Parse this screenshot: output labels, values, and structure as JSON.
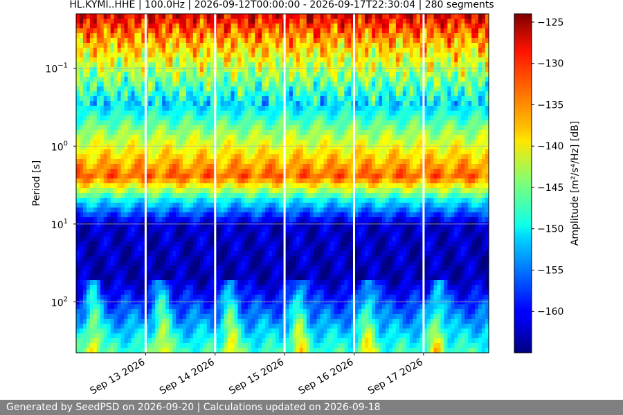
{
  "footer": {
    "text": "Generated by SeedPSD on 2026-09-20 | Calculations updated on 2026-09-18",
    "background": "#808080"
  },
  "chart_data": {
    "type": "heatmap",
    "title": "HL.KYMI..HHE | 100.0Hz | 2026-09-12T00:00:00 - 2026-09-17T22:30:04 | 280 segments",
    "ylabel": "Period [s]",
    "xlabel": "",
    "colorbar_label": "Amplitude [m²/s⁴/Hz] [dB]",
    "colormap": "jet",
    "x_range": [
      "2026-09-12T00:00:00",
      "2026-09-17T22:30:04"
    ],
    "x_ticks": [
      "Sep 13 2026",
      "Sep 14 2026",
      "Sep 15 2026",
      "Sep 16 2026",
      "Sep 17 2026"
    ],
    "x_tick_dates": [
      "2026-09-13",
      "2026-09-14",
      "2026-09-15",
      "2026-09-16",
      "2026-09-17"
    ],
    "y_scale": "log",
    "y_inverted": true,
    "y_range": [
      0.02,
      450
    ],
    "y_ticks": [
      {
        "exp": "-1",
        "value": 0.1
      },
      {
        "exp": "0",
        "value": 1
      },
      {
        "exp": "1",
        "value": 10
      },
      {
        "exp": "2",
        "value": 100
      }
    ],
    "color_range": [
      -165,
      -124
    ],
    "colorbar_ticks": [
      -125,
      -130,
      -135,
      -140,
      -145,
      -150,
      -155,
      -160
    ],
    "data_gaps": [
      "2026-09-13",
      "2026-09-14",
      "2026-09-15",
      "2026-09-16",
      "2026-09-17"
    ],
    "grid": "horizontal",
    "spectral_profile_db": [
      {
        "period": 0.02,
        "db": -128
      },
      {
        "period": 0.05,
        "db": -137
      },
      {
        "period": 0.1,
        "db": -142
      },
      {
        "period": 0.3,
        "db": -151
      },
      {
        "period": 0.7,
        "db": -143
      },
      {
        "period": 2.5,
        "db": -133
      },
      {
        "period": 5,
        "db": -150
      },
      {
        "period": 10,
        "db": -162
      },
      {
        "period": 50,
        "db": -163
      },
      {
        "period": 150,
        "db": -155
      },
      {
        "period": 450,
        "db": -147
      }
    ]
  }
}
